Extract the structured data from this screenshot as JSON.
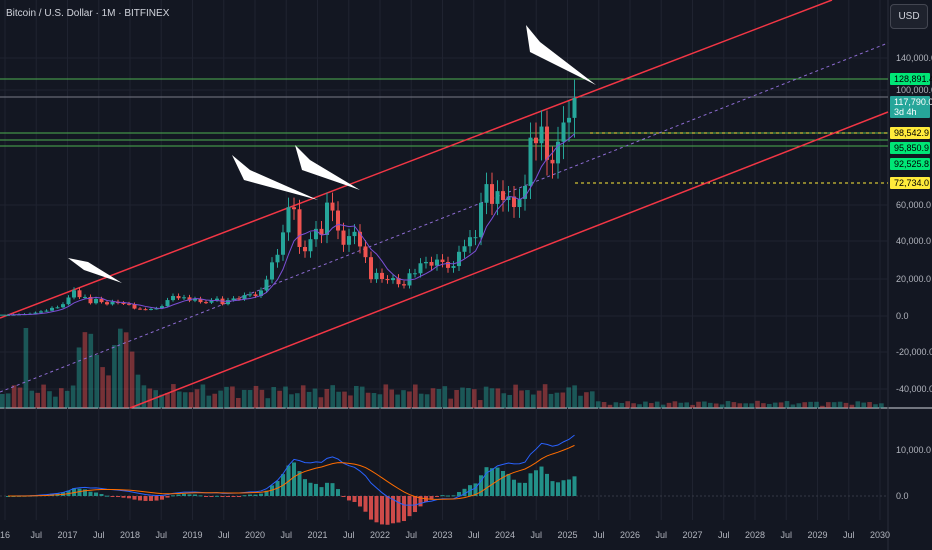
{
  "header": {
    "title": "Bitcoin / U.S. Dollar · 1M · BITFINEX",
    "currency": "USD"
  },
  "chart_data": {
    "type": "candlestick",
    "x_ticks": [
      "16",
      "Jul",
      "2017",
      "Jul",
      "2018",
      "Jul",
      "2019",
      "Jul",
      "2020",
      "Jul",
      "2021",
      "Jul",
      "2022",
      "Jul",
      "2023",
      "Jul",
      "2024",
      "Jul",
      "2025",
      "Jul",
      "2026",
      "Jul",
      "2027",
      "Jul",
      "2028",
      "Jul",
      "2029",
      "Jul",
      "2030"
    ],
    "y_ticks": [
      "140,000.0",
      "100,000.0",
      "60,000.0",
      "40,000.0",
      "20,000.0",
      "0.0",
      "-20,000.0",
      "-40,000.0"
    ],
    "price_tags": [
      {
        "text": "128,891.4",
        "color": "#00e676",
        "text_color": "#000000"
      },
      {
        "text": "117,790.0",
        "color": "#26a69a",
        "text_color": "#ffffff",
        "sub": "3d 4h"
      },
      {
        "text": "98,542.9",
        "color": "#ffeb3b",
        "text_color": "#000000"
      },
      {
        "text": "95,850.9",
        "color": "#00e676",
        "text_color": "#000000"
      },
      {
        "text": "92,525.8",
        "color": "#00e676",
        "text_color": "#000000"
      },
      {
        "text": "72,734.0",
        "color": "#ffeb3b",
        "text_color": "#000000"
      }
    ],
    "candles_close": [
      0.6,
      0.7,
      0.9,
      1.0,
      1.2,
      1.8,
      2.5,
      2.9,
      4.4,
      4.7,
      6.4,
      10.0,
      13.9,
      10.2,
      10.3,
      6.9,
      9.2,
      7.5,
      6.3,
      7.7,
      7.0,
      6.6,
      6.3,
      4.0,
      3.7,
      3.4,
      3.8,
      4.1,
      5.3,
      8.6,
      10.8,
      9.6,
      10.1,
      8.3,
      9.2,
      7.5,
      7.2,
      8.5,
      9.4,
      6.4,
      8.6,
      9.5,
      9.1,
      11.3,
      11.7,
      10.8,
      13.8,
      19.7,
      29.0,
      33.1,
      45.2,
      58.8,
      57.7,
      37.3,
      35.0,
      41.5,
      47.1,
      43.8,
      61.3,
      57.0,
      46.2,
      38.5,
      43.2,
      45.5,
      37.6,
      31.8,
      19.9,
      23.3,
      20.0,
      19.4,
      20.5,
      17.2,
      16.5,
      23.1,
      23.1,
      28.5,
      29.2,
      27.2,
      30.5,
      29.2,
      26.0,
      27.0,
      34.7,
      37.7,
      42.6,
      42.6,
      61.2,
      71.3,
      60.6,
      67.5,
      62.7,
      64.6,
      58.9,
      63.3,
      70.3,
      96.4,
      93.4,
      102.4,
      84.4,
      82.5,
      94.2,
      104.6,
      107.1,
      117.8
    ],
    "macd_note": "histogram and signal lines shown in lower pane",
    "macd_y_ticks": [
      "10,000.0",
      "0.0"
    ]
  }
}
